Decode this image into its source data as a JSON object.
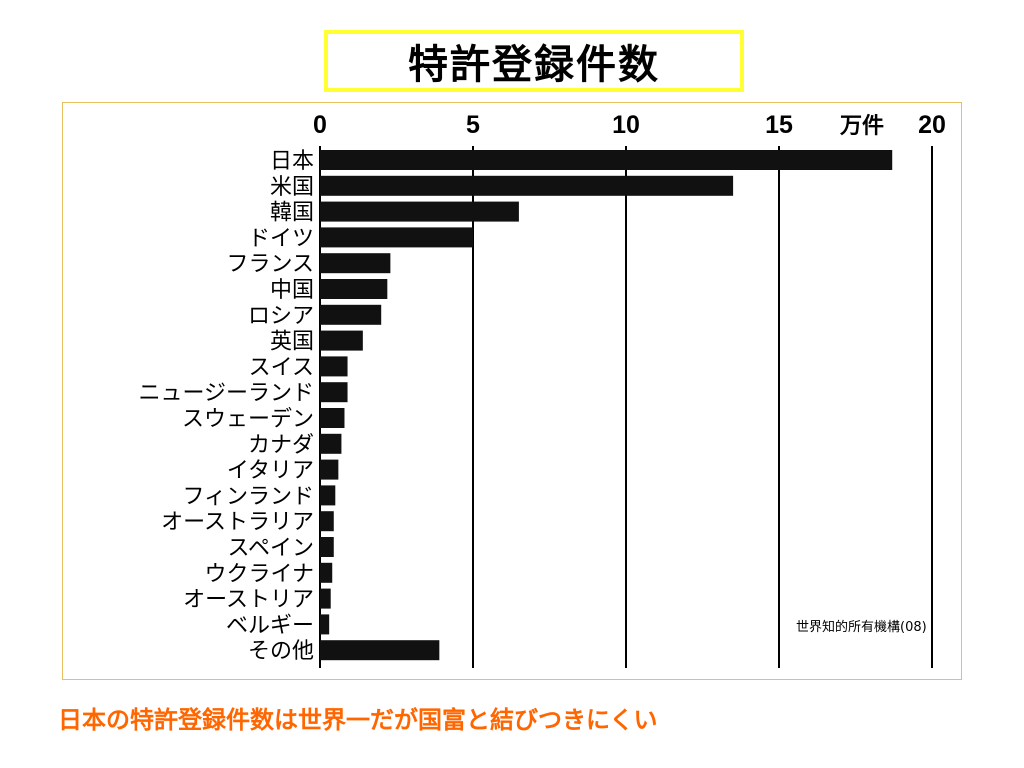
{
  "title": "特許登録件数",
  "caption": "日本の特許登録件数は世界一だが国富と結びつきにくい",
  "source": "世界知的所有機構(08)",
  "chart_data": {
    "type": "bar",
    "orientation": "horizontal",
    "title": "特許登録件数",
    "xlabel": "万件",
    "ylabel": "",
    "xlim": [
      0,
      20
    ],
    "xticks": [
      0,
      5,
      10,
      15,
      20
    ],
    "grid": true,
    "bar_color": "#111111",
    "categories": [
      "日本",
      "米国",
      "韓国",
      "ドイツ",
      "フランス",
      "中国",
      "ロシア",
      "英国",
      "スイス",
      "ニュージーランド",
      "スウェーデン",
      "カナダ",
      "イタリア",
      "フィンランド",
      "オーストラリア",
      "スペイン",
      "ウクライナ",
      "オーストリア",
      "ベルギー",
      "その他"
    ],
    "values": [
      18.7,
      13.5,
      6.5,
      5.0,
      2.3,
      2.2,
      2.0,
      1.4,
      0.9,
      0.9,
      0.8,
      0.7,
      0.6,
      0.5,
      0.45,
      0.45,
      0.4,
      0.35,
      0.3,
      3.9
    ]
  }
}
